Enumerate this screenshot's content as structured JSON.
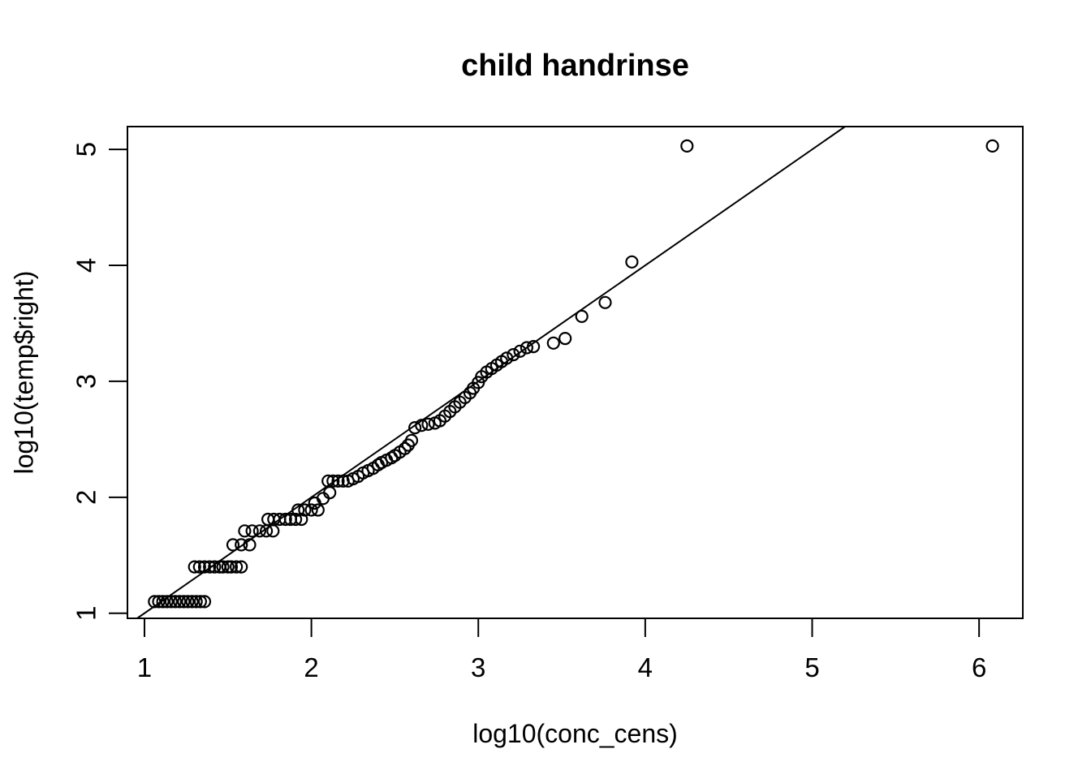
{
  "chart_data": {
    "type": "scatter",
    "title": "child handrinse",
    "xlabel": "log10(conc_cens)",
    "ylabel": "log10(temp$right)",
    "x_ticks": [
      1,
      2,
      3,
      4,
      5,
      6
    ],
    "y_ticks": [
      1,
      2,
      3,
      4,
      5
    ],
    "xlim": [
      0.898,
      6.262
    ],
    "ylim": [
      0.956,
      5.197
    ],
    "grid": false,
    "legend": "none",
    "marker": "open-circle",
    "marker_color": "#000000",
    "reference_line": {
      "intercept": 0,
      "slope": 1,
      "color": "#000000"
    },
    "points": [
      [
        1.06,
        1.1
      ],
      [
        1.085,
        1.1
      ],
      [
        1.11,
        1.1
      ],
      [
        1.135,
        1.1
      ],
      [
        1.16,
        1.1
      ],
      [
        1.185,
        1.1
      ],
      [
        1.21,
        1.1
      ],
      [
        1.235,
        1.1
      ],
      [
        1.26,
        1.1
      ],
      [
        1.285,
        1.1
      ],
      [
        1.31,
        1.1
      ],
      [
        1.335,
        1.1
      ],
      [
        1.36,
        1.1
      ],
      [
        1.3,
        1.4
      ],
      [
        1.33,
        1.4
      ],
      [
        1.36,
        1.4
      ],
      [
        1.39,
        1.4
      ],
      [
        1.42,
        1.4
      ],
      [
        1.45,
        1.4
      ],
      [
        1.47,
        1.4
      ],
      [
        1.5,
        1.4
      ],
      [
        1.52,
        1.4
      ],
      [
        1.55,
        1.4
      ],
      [
        1.58,
        1.4
      ],
      [
        1.53,
        1.59
      ],
      [
        1.58,
        1.59
      ],
      [
        1.63,
        1.59
      ],
      [
        1.6,
        1.71
      ],
      [
        1.645,
        1.71
      ],
      [
        1.69,
        1.71
      ],
      [
        1.73,
        1.71
      ],
      [
        1.77,
        1.71
      ],
      [
        1.74,
        1.81
      ],
      [
        1.775,
        1.81
      ],
      [
        1.81,
        1.81
      ],
      [
        1.845,
        1.81
      ],
      [
        1.875,
        1.81
      ],
      [
        1.905,
        1.81
      ],
      [
        1.94,
        1.81
      ],
      [
        1.92,
        1.89
      ],
      [
        1.96,
        1.89
      ],
      [
        2.0,
        1.89
      ],
      [
        2.04,
        1.89
      ],
      [
        2.02,
        1.95
      ],
      [
        2.07,
        1.99
      ],
      [
        2.11,
        2.04
      ],
      [
        2.1,
        2.14
      ],
      [
        2.13,
        2.14
      ],
      [
        2.16,
        2.14
      ],
      [
        2.19,
        2.14
      ],
      [
        2.22,
        2.14
      ],
      [
        2.25,
        2.16
      ],
      [
        2.28,
        2.18
      ],
      [
        2.31,
        2.21
      ],
      [
        2.34,
        2.23
      ],
      [
        2.37,
        2.25
      ],
      [
        2.4,
        2.28
      ],
      [
        2.42,
        2.3
      ],
      [
        2.45,
        2.32
      ],
      [
        2.48,
        2.34
      ],
      [
        2.5,
        2.36
      ],
      [
        2.53,
        2.39
      ],
      [
        2.56,
        2.42
      ],
      [
        2.58,
        2.45
      ],
      [
        2.6,
        2.49
      ],
      [
        2.62,
        2.6
      ],
      [
        2.66,
        2.62
      ],
      [
        2.7,
        2.63
      ],
      [
        2.74,
        2.64
      ],
      [
        2.77,
        2.66
      ],
      [
        2.8,
        2.7
      ],
      [
        2.83,
        2.74
      ],
      [
        2.86,
        2.78
      ],
      [
        2.89,
        2.82
      ],
      [
        2.92,
        2.86
      ],
      [
        2.95,
        2.9
      ],
      [
        2.97,
        2.94
      ],
      [
        3.0,
        2.99
      ],
      [
        3.02,
        3.04
      ],
      [
        3.05,
        3.08
      ],
      [
        3.08,
        3.11
      ],
      [
        3.11,
        3.14
      ],
      [
        3.14,
        3.17
      ],
      [
        3.17,
        3.2
      ],
      [
        3.21,
        3.23
      ],
      [
        3.25,
        3.26
      ],
      [
        3.29,
        3.29
      ],
      [
        3.33,
        3.3
      ],
      [
        3.45,
        3.33
      ],
      [
        3.52,
        3.37
      ],
      [
        3.62,
        3.56
      ],
      [
        3.76,
        3.68
      ],
      [
        3.92,
        4.03
      ],
      [
        4.25,
        5.03
      ],
      [
        6.08,
        5.03
      ]
    ]
  }
}
